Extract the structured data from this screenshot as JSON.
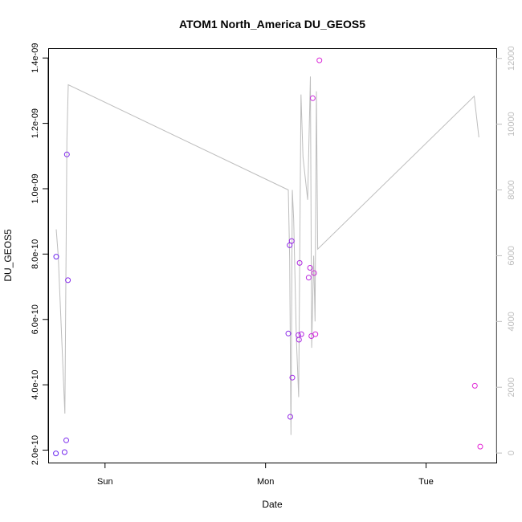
{
  "chart_data": {
    "type": "scatter",
    "title": "ATOM1 North_America DU_GEOS5",
    "xlabel": "Date",
    "ylabel": "DU_GEOS5",
    "x_ticks": [
      "Sun",
      "Mon",
      "Tue"
    ],
    "y_ticks": [
      "2.0e-10",
      "4.0e-10",
      "6.0e-10",
      "8.0e-10",
      "1.0e-09",
      "1.2e-09",
      "1.4e-09"
    ],
    "y_tick_values": [
      2e-10,
      4e-10,
      6e-10,
      8e-10,
      1e-09,
      1.2e-09,
      1.4e-09
    ],
    "y2_ticks": [
      "0",
      "2000",
      "4000",
      "6000",
      "8000",
      "10000",
      "12000"
    ],
    "y2_tick_values": [
      0,
      2000,
      4000,
      6000,
      8000,
      10000,
      12000
    ],
    "xlim_hours": [
      -8.5,
      58.5
    ],
    "ylim": [
      1.62e-10,
      1.43e-09
    ],
    "y2lim": [
      -290,
      12310
    ],
    "grid": false,
    "colors": {
      "line": "#bdbdbd",
      "point_start": "#6a28f0",
      "point_end": "#e52ad6"
    },
    "points": [
      {
        "x": -7.35,
        "y": 1.9e-10
      },
      {
        "x": -7.3,
        "y": 7.92e-10
      },
      {
        "x": -6.05,
        "y": 1.94e-10
      },
      {
        "x": -5.8,
        "y": 2.3e-10
      },
      {
        "x": -5.7,
        "y": 1.105e-09
      },
      {
        "x": -5.55,
        "y": 7.2e-10
      },
      {
        "x": 27.4,
        "y": 5.57e-10
      },
      {
        "x": 27.6,
        "y": 8.27e-10
      },
      {
        "x": 27.7,
        "y": 3.02e-10
      },
      {
        "x": 27.9,
        "y": 8.4e-10
      },
      {
        "x": 28.0,
        "y": 4.22e-10
      },
      {
        "x": 28.9,
        "y": 5.52e-10
      },
      {
        "x": 29.0,
        "y": 5.38e-10
      },
      {
        "x": 29.1,
        "y": 7.73e-10
      },
      {
        "x": 29.35,
        "y": 5.55e-10
      },
      {
        "x": 30.45,
        "y": 7.28e-10
      },
      {
        "x": 30.65,
        "y": 7.58e-10
      },
      {
        "x": 30.85,
        "y": 5.49e-10
      },
      {
        "x": 31.05,
        "y": 1.277e-09
      },
      {
        "x": 31.25,
        "y": 7.42e-10
      },
      {
        "x": 31.45,
        "y": 5.55e-10
      },
      {
        "x": 32.05,
        "y": 1.393e-09
      },
      {
        "x": 55.3,
        "y": 3.97e-10
      },
      {
        "x": 56.1,
        "y": 2.11e-10
      }
    ],
    "line_series": [
      {
        "x": -7.3,
        "y": 6800
      },
      {
        "x": -7.0,
        "y": 6000
      },
      {
        "x": -6.0,
        "y": 1200
      },
      {
        "x": -5.7,
        "y": 9500
      },
      {
        "x": -5.5,
        "y": 11200
      },
      {
        "x": 27.4,
        "y": 8000
      },
      {
        "x": 27.6,
        "y": 5900
      },
      {
        "x": 27.8,
        "y": 550
      },
      {
        "x": 28.0,
        "y": 8000
      },
      {
        "x": 28.2,
        "y": 7100
      },
      {
        "x": 28.6,
        "y": 3500
      },
      {
        "x": 28.95,
        "y": 1700
      },
      {
        "x": 29.3,
        "y": 10900
      },
      {
        "x": 29.6,
        "y": 9000
      },
      {
        "x": 30.3,
        "y": 7700
      },
      {
        "x": 30.7,
        "y": 11450
      },
      {
        "x": 30.9,
        "y": 3200
      },
      {
        "x": 31.2,
        "y": 6000
      },
      {
        "x": 31.4,
        "y": 4000
      },
      {
        "x": 31.6,
        "y": 11000
      },
      {
        "x": 31.8,
        "y": 6200
      },
      {
        "x": 55.2,
        "y": 10850
      },
      {
        "x": 55.9,
        "y": 9600
      }
    ]
  }
}
